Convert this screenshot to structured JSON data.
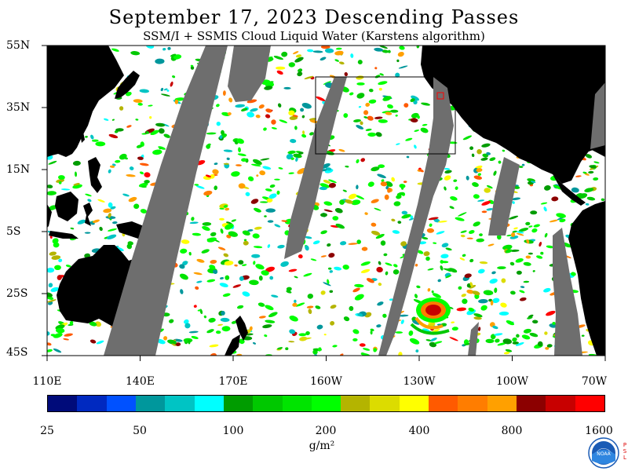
{
  "header": {
    "title": "September 17, 2023  Descending Passes",
    "subtitle": "SSM/I + SSMIS Cloud Liquid Water (Karstens algorithm)"
  },
  "map": {
    "lat_labels": [
      "55N",
      "35N",
      "15N",
      "5S",
      "25S",
      "45S"
    ],
    "lon_labels": [
      "110E",
      "140E",
      "170E",
      "160W",
      "130W",
      "100W",
      "70W"
    ],
    "colors": {
      "land": "#000000",
      "no_data_gap": "#6e6e6e",
      "clear_ocean": "#ffffff",
      "highlight_box": "#000000",
      "marker": "#ff0000"
    }
  },
  "colorbar": {
    "colors": [
      "#000b7a",
      "#0029c0",
      "#0051ff",
      "#00979c",
      "#00c4c4",
      "#00ffff",
      "#009c00",
      "#00c800",
      "#00e400",
      "#00ff00",
      "#b4b400",
      "#dcdc00",
      "#ffff00",
      "#ff5a00",
      "#ff7d00",
      "#ffa000",
      "#8c0000",
      "#c80000",
      "#ff0000"
    ],
    "tick_labels": [
      "25",
      "50",
      "100",
      "200",
      "400",
      "800",
      "1600"
    ],
    "units": "g/m²"
  },
  "logo": {
    "name": "NOAA",
    "side_text": "PSL"
  }
}
